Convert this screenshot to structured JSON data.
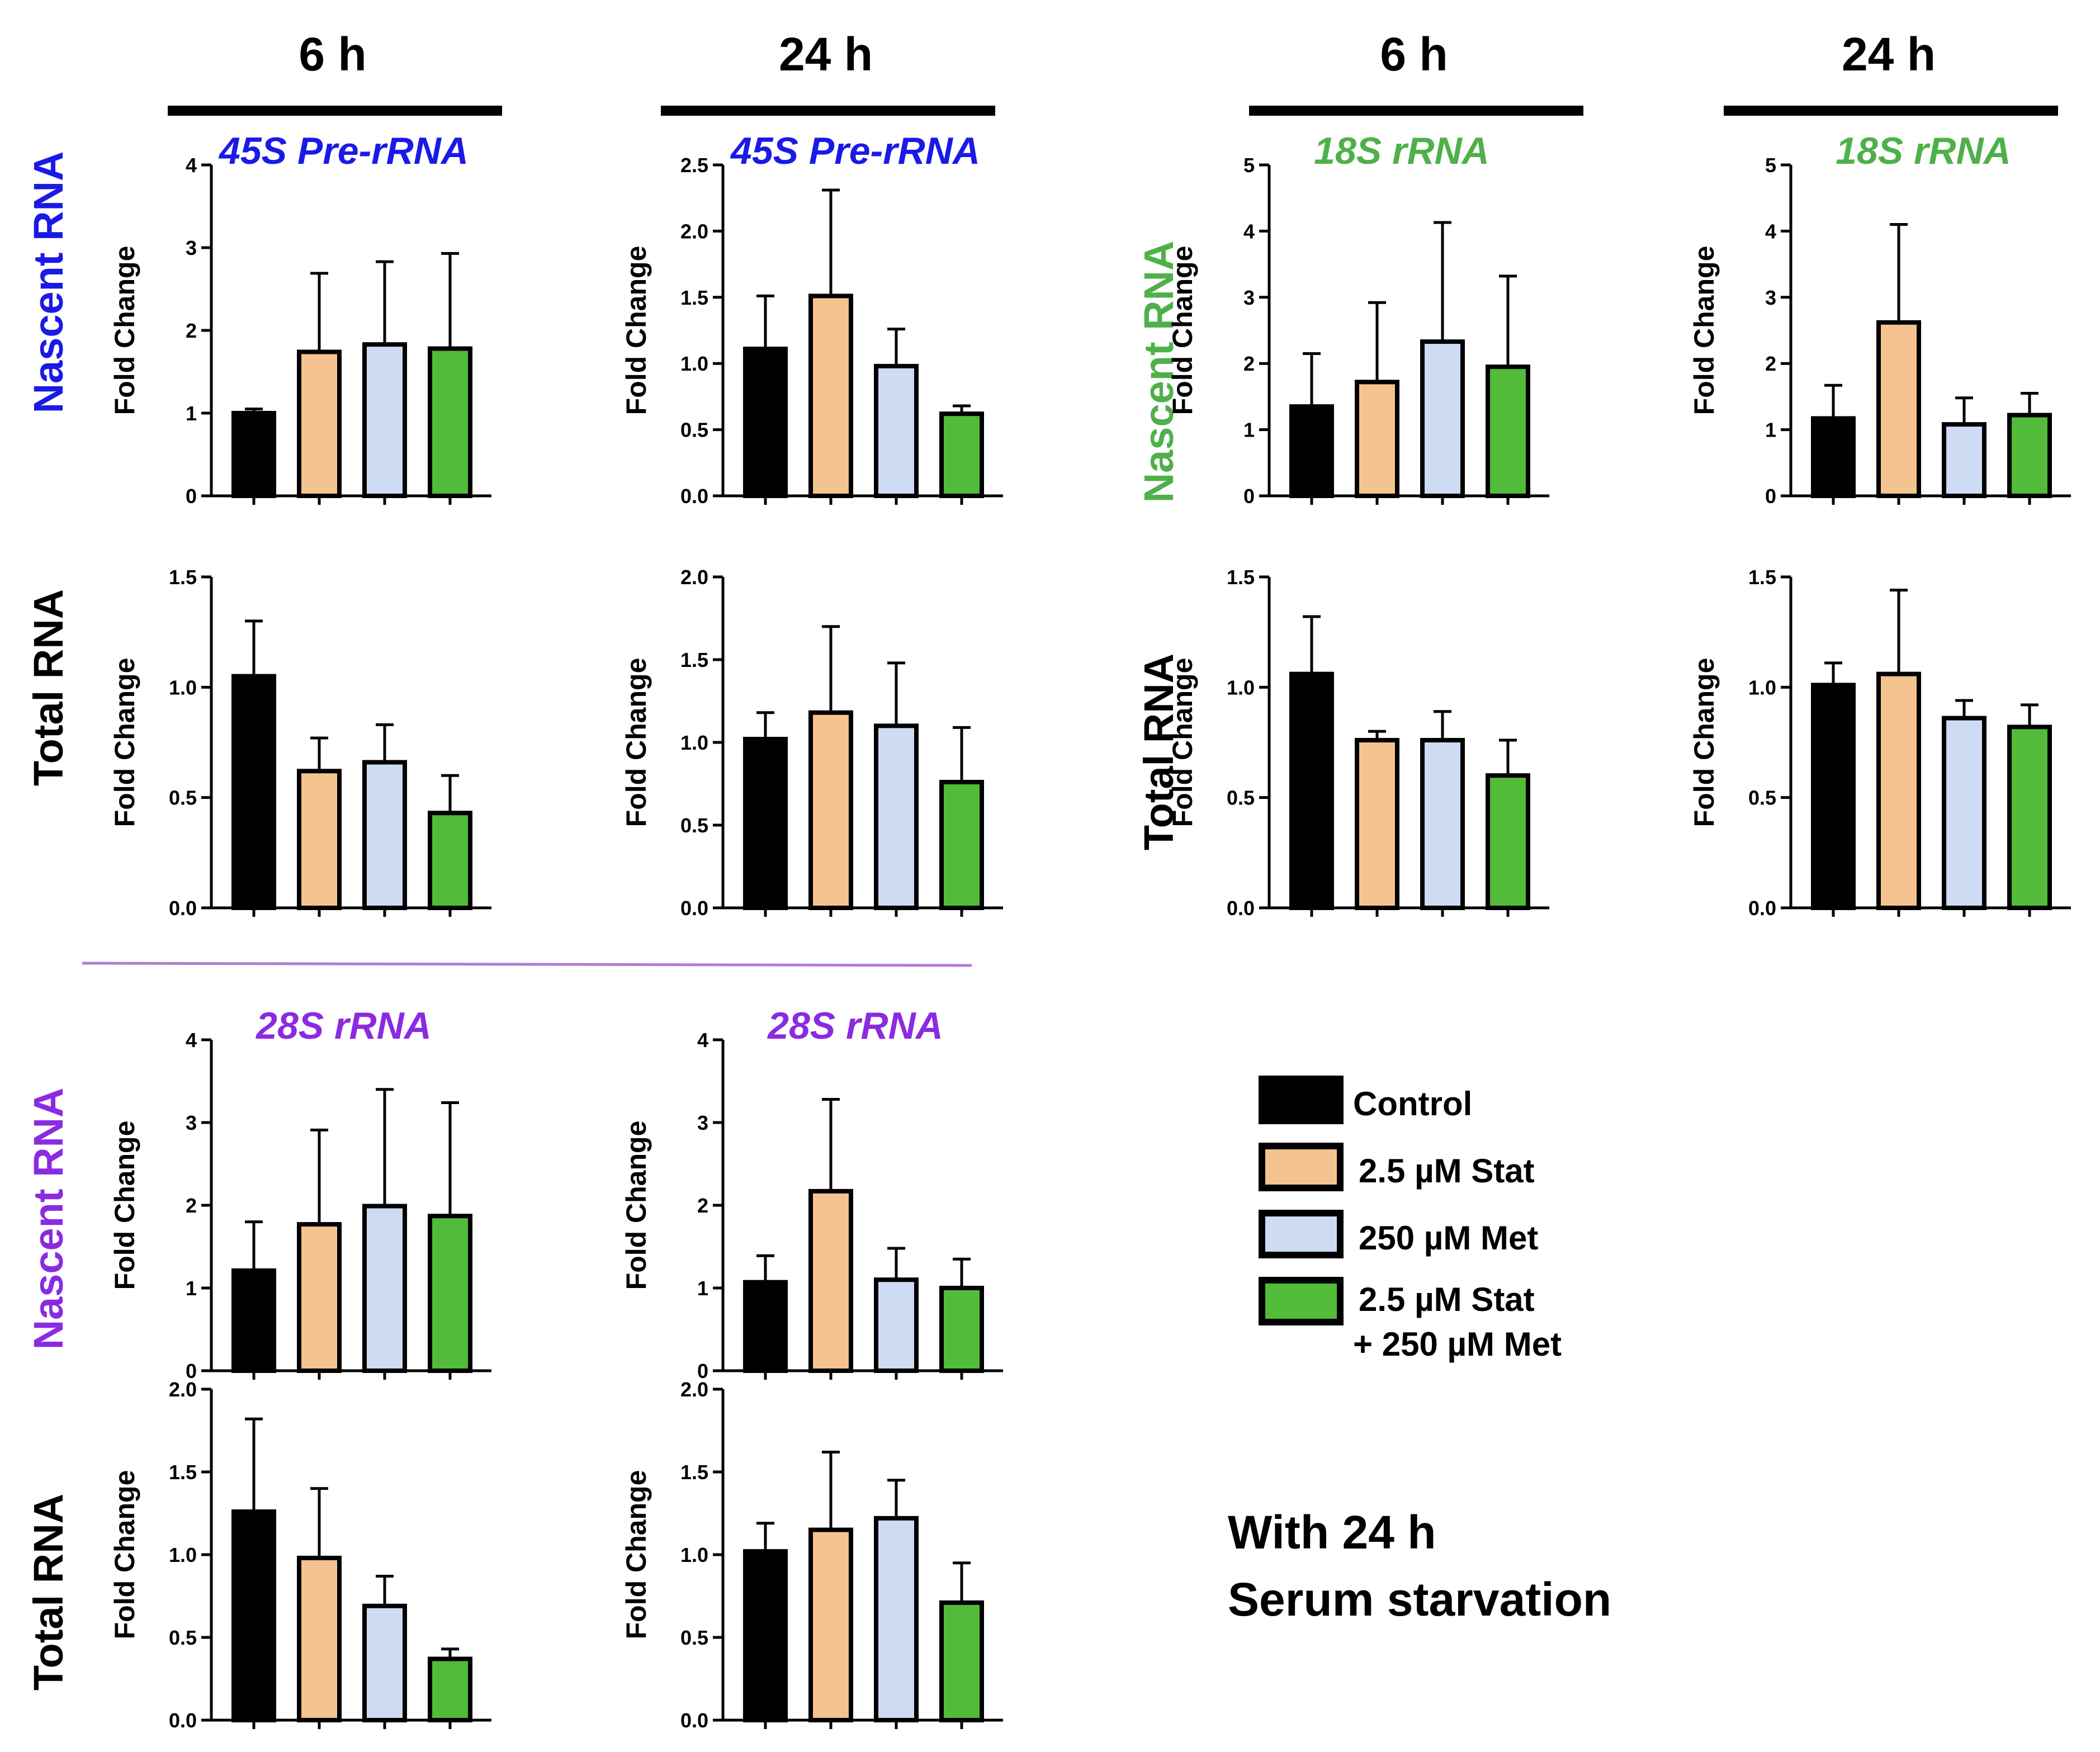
{
  "figure": {
    "column_headers": [
      "6 h",
      "24 h",
      "6 h",
      "24 h"
    ],
    "row_labels": {
      "nascent_45s": "Nascent RNA",
      "total_45s": "Total RNA",
      "nascent_18s": "Nascent RNA",
      "total_18s": "Total RNA",
      "nascent_28s": "Nascent RNA",
      "total_28s": "Total RNA"
    },
    "titles": {
      "pre45s": "45S Pre-rRNA",
      "r18s": "18S rRNA",
      "r28s": "28S rRNA"
    },
    "note_lines": [
      "With 24 h",
      "Serum starvation"
    ]
  },
  "colors": {
    "control": "#000000",
    "stat": "#f5c38f",
    "met": "#cddcf3",
    "combo": "#52bb3a",
    "blue": "#1a1ae6",
    "green": "#4fb04a",
    "purple": "#8a2be2",
    "divider": "#b57bd9"
  },
  "legend": [
    {
      "label": "Control",
      "color_key": "control"
    },
    {
      "label": "2.5 µM Stat",
      "color_key": "stat"
    },
    {
      "label": "250 µM Met",
      "color_key": "met"
    },
    {
      "label": "2.5 µM Stat",
      "label2": "+ 250 µM Met",
      "color_key": "combo"
    }
  ],
  "chart_data": [
    {
      "id": "p45_6h_nascent",
      "type": "bar",
      "title": "45S Pre-rRNA",
      "ylabel": "Fold Change",
      "ylim": [
        0,
        4
      ],
      "ticks": [
        "0",
        "1",
        "2",
        "3",
        "4"
      ],
      "categories": [
        "Control",
        "2.5 µM Stat",
        "250 µM Met",
        "2.5 µM Stat + 250 µM Met"
      ],
      "values": [
        1.0,
        1.74,
        1.83,
        1.78
      ],
      "errors": [
        0.05,
        0.95,
        1.0,
        1.15
      ]
    },
    {
      "id": "p45_24h_nascent",
      "type": "bar",
      "title": "45S Pre-rRNA",
      "ylabel": "Fold Change",
      "ylim": [
        0,
        2.5
      ],
      "ticks": [
        "0.0",
        "0.5",
        "1.0",
        "1.5",
        "2.0",
        "2.5"
      ],
      "categories": [
        "Control",
        "2.5 µM Stat",
        "250 µM Met",
        "2.5 µM Stat + 250 µM Met"
      ],
      "values": [
        1.11,
        1.51,
        0.98,
        0.62
      ],
      "errors": [
        0.4,
        0.8,
        0.28,
        0.06
      ]
    },
    {
      "id": "r18_6h_nascent",
      "type": "bar",
      "title": "18S rRNA",
      "ylabel": "Fold Change",
      "ylim": [
        0,
        5
      ],
      "ticks": [
        "0",
        "1",
        "2",
        "3",
        "4",
        "5"
      ],
      "categories": [
        "Control",
        "2.5 µM Stat",
        "250 µM Met",
        "2.5 µM Stat + 250 µM Met"
      ],
      "values": [
        1.35,
        1.72,
        2.33,
        1.95
      ],
      "errors": [
        0.8,
        1.2,
        1.8,
        1.37
      ]
    },
    {
      "id": "r18_24h_nascent",
      "type": "bar",
      "title": "18S rRNA",
      "ylabel": "Fold Change",
      "ylim": [
        0,
        5
      ],
      "ticks": [
        "0",
        "1",
        "2",
        "3",
        "4",
        "5"
      ],
      "categories": [
        "Control",
        "2.5 µM Stat",
        "250 µM Met",
        "2.5 µM Stat + 250 µM Met"
      ],
      "values": [
        1.17,
        2.62,
        1.08,
        1.22
      ],
      "errors": [
        0.5,
        1.48,
        0.4,
        0.33
      ]
    },
    {
      "id": "p45_6h_total",
      "type": "bar",
      "title": "",
      "ylabel": "Fold Change",
      "ylim": [
        0,
        1.5
      ],
      "ticks": [
        "0.0",
        "0.5",
        "1.0",
        "1.5"
      ],
      "categories": [
        "Control",
        "2.5 µM Stat",
        "250 µM Met",
        "2.5 µM Stat + 250 µM Met"
      ],
      "values": [
        1.05,
        0.62,
        0.66,
        0.43
      ],
      "errors": [
        0.25,
        0.15,
        0.17,
        0.17
      ]
    },
    {
      "id": "p45_24h_total",
      "type": "bar",
      "title": "",
      "ylabel": "Fold Change",
      "ylim": [
        0,
        2.0
      ],
      "ticks": [
        "0.0",
        "0.5",
        "1.0",
        "1.5",
        "2.0"
      ],
      "categories": [
        "Control",
        "2.5 µM Stat",
        "250 µM Met",
        "2.5 µM Stat + 250 µM Met"
      ],
      "values": [
        1.02,
        1.18,
        1.1,
        0.76
      ],
      "errors": [
        0.16,
        0.52,
        0.38,
        0.33
      ]
    },
    {
      "id": "r18_6h_total",
      "type": "bar",
      "title": "",
      "ylabel": "Fold Change",
      "ylim": [
        0,
        1.5
      ],
      "ticks": [
        "0.0",
        "0.5",
        "1.0",
        "1.5"
      ],
      "categories": [
        "Control",
        "2.5 µM Stat",
        "250 µM Met",
        "2.5 µM Stat + 250 µM Met"
      ],
      "values": [
        1.06,
        0.76,
        0.76,
        0.6
      ],
      "errors": [
        0.26,
        0.04,
        0.13,
        0.16
      ]
    },
    {
      "id": "r18_24h_total",
      "type": "bar",
      "title": "",
      "ylabel": "Fold Change",
      "ylim": [
        0,
        1.5
      ],
      "ticks": [
        "0.0",
        "0.5",
        "1.0",
        "1.5"
      ],
      "categories": [
        "Control",
        "2.5 µM Stat",
        "250 µM Met",
        "2.5 µM Stat + 250 µM Met"
      ],
      "values": [
        1.01,
        1.06,
        0.86,
        0.82
      ],
      "errors": [
        0.1,
        0.38,
        0.08,
        0.1
      ]
    },
    {
      "id": "r28_6h_nascent",
      "type": "bar",
      "title": "28S rRNA",
      "ylabel": "Fold Change",
      "ylim": [
        0,
        4
      ],
      "ticks": [
        "0",
        "1",
        "2",
        "3",
        "4"
      ],
      "categories": [
        "Control",
        "2.5 µM Stat",
        "250 µM Met",
        "2.5 µM Stat + 250 µM Met"
      ],
      "values": [
        1.21,
        1.77,
        1.99,
        1.87
      ],
      "errors": [
        0.59,
        1.14,
        1.41,
        1.37
      ]
    },
    {
      "id": "r28_24h_nascent",
      "type": "bar",
      "title": "28S rRNA",
      "ylabel": "Fold Change",
      "ylim": [
        0,
        4
      ],
      "ticks": [
        "0",
        "1",
        "2",
        "3",
        "4"
      ],
      "categories": [
        "Control",
        "2.5 µM Stat",
        "250 µM Met",
        "2.5 µM Stat + 250 µM Met"
      ],
      "values": [
        1.07,
        2.17,
        1.1,
        1.0
      ],
      "errors": [
        0.32,
        1.11,
        0.38,
        0.35
      ]
    },
    {
      "id": "r28_6h_total",
      "type": "bar",
      "title": "",
      "ylabel": "Fold Change",
      "ylim": [
        0,
        2.0
      ],
      "ticks": [
        "0.0",
        "0.5",
        "1.0",
        "1.5",
        "2.0"
      ],
      "categories": [
        "Control",
        "2.5 µM Stat",
        "250 µM Met",
        "2.5 µM Stat + 250 µM Met"
      ],
      "values": [
        1.26,
        0.98,
        0.69,
        0.37
      ],
      "errors": [
        0.56,
        0.42,
        0.18,
        0.06
      ]
    },
    {
      "id": "r28_24h_total",
      "type": "bar",
      "title": "",
      "ylabel": "Fold Change",
      "ylim": [
        0,
        2.0
      ],
      "ticks": [
        "0.0",
        "0.5",
        "1.0",
        "1.5",
        "2.0"
      ],
      "categories": [
        "Control",
        "2.5 µM Stat",
        "250 µM Met",
        "2.5 µM Stat + 250 µM Met"
      ],
      "values": [
        1.02,
        1.15,
        1.22,
        0.71
      ],
      "errors": [
        0.17,
        0.47,
        0.23,
        0.24
      ]
    }
  ]
}
